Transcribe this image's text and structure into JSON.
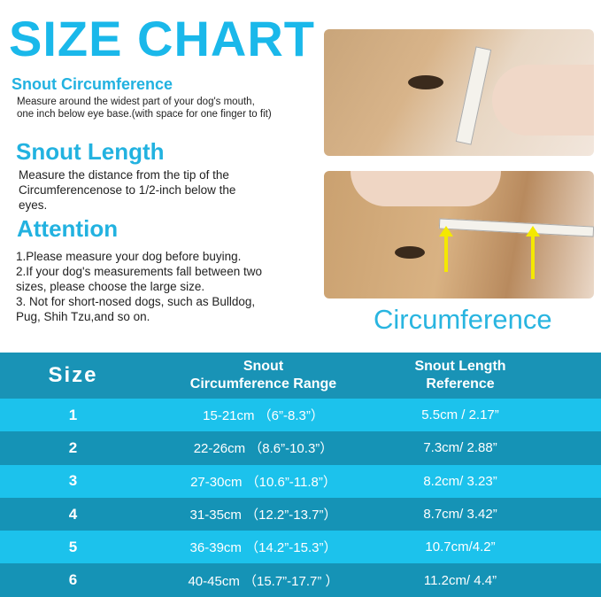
{
  "title": "SIZE CHART",
  "sections": [
    {
      "heading": "Snout  Circumference",
      "text": "Measure around the widest part of your dog's mouth, one inch below eye base.(with space for one finger to fit)"
    },
    {
      "heading": "Snout  Length",
      "text": "Measure the distance from the tip of the Circumferencenose to 1/2-inch below the eyes."
    },
    {
      "heading": "Attention",
      "lines": [
        "1.Please measure your dog before buying.",
        "2.If your dog's measurements fall between two sizes, please choose the large size.",
        "3. Not for short-nosed dogs, such as Bulldog, Pug, Shih Tzu,and so on."
      ]
    }
  ],
  "photo_caption": "Circumference",
  "table": {
    "headers": {
      "size": "Size",
      "circ_1": "Snout",
      "circ_2": "Circumference Range",
      "len_1": "Snout Length",
      "len_2": "Reference"
    },
    "rows": [
      {
        "size": "1",
        "circ": "15-21cm （6”-8.3”）",
        "len": "5.5cm / 2.17”"
      },
      {
        "size": "2",
        "circ": "22-26cm （8.6”-10.3”）",
        "len": "7.3cm/ 2.88”"
      },
      {
        "size": "3",
        "circ": "27-30cm （10.6”-11.8”）",
        "len": "8.2cm/ 3.23”"
      },
      {
        "size": "4",
        "circ": "31-35cm （12.2”-13.7”）",
        "len": "8.7cm/ 3.42”"
      },
      {
        "size": "5",
        "circ": "36-39cm （14.2”-15.3”）",
        "len": "10.7cm/4.2”"
      },
      {
        "size": "6",
        "circ": "40-45cm （15.7”-17.7” ）",
        "len": "11.2cm/ 4.4”"
      }
    ]
  },
  "colors": {
    "accent": "#1ab8ea",
    "header_bg": "#1993b6",
    "row_light": "#1cc2ec",
    "row_dark": "#1593b6"
  }
}
